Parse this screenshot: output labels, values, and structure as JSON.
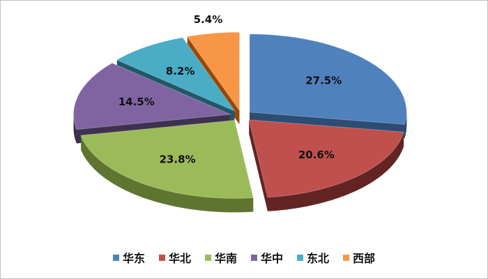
{
  "chart_data": {
    "type": "pie",
    "style": "3d-exploded",
    "categories": [
      "华东",
      "华北",
      "华南",
      "华中",
      "东北",
      "西部"
    ],
    "values": [
      27.5,
      20.6,
      23.8,
      14.5,
      8.2,
      5.4
    ],
    "labels": [
      "27.5%",
      "20.6%",
      "23.8%",
      "14.5%",
      "8.2%",
      "5.4%"
    ],
    "colors": [
      "#4f81bd",
      "#c0504d",
      "#9bbb59",
      "#8064a2",
      "#4bacc6",
      "#f79646"
    ],
    "side_colors": [
      "#2c4d75",
      "#632523",
      "#5f7530",
      "#3f3151",
      "#205867",
      "#974806"
    ],
    "start": "top",
    "direction": "clockwise",
    "legend_position": "bottom"
  }
}
